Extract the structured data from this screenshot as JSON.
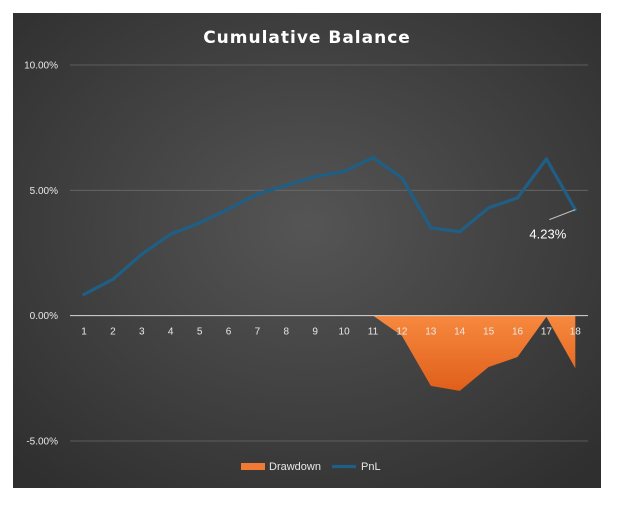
{
  "chart_data": {
    "type": "line",
    "title": "Cumulative Balance",
    "categories": [
      "1",
      "2",
      "3",
      "4",
      "5",
      "6",
      "7",
      "8",
      "9",
      "10",
      "11",
      "12",
      "13",
      "14",
      "15",
      "16",
      "17",
      "18"
    ],
    "y_ticks": [
      "10.00%",
      "5.00%",
      "0.00%",
      "-5.00%"
    ],
    "ylim": [
      -5,
      10
    ],
    "grid": true,
    "legend_position": "bottom",
    "series": [
      {
        "name": "Drawdown",
        "kind": "area",
        "color": "#f07a33",
        "values": [
          0,
          0,
          0,
          0,
          0,
          0,
          0,
          0,
          0,
          0,
          0,
          -0.8,
          -2.8,
          -3.0,
          -2.05,
          -1.65,
          -0.05,
          -2.1
        ]
      },
      {
        "name": "PnL",
        "kind": "line",
        "color": "#1f5f86",
        "values": [
          0.85,
          1.45,
          2.45,
          3.25,
          3.7,
          4.25,
          4.85,
          5.2,
          5.55,
          5.75,
          6.3,
          5.5,
          3.5,
          3.35,
          4.3,
          4.7,
          6.25,
          4.23
        ]
      }
    ],
    "annotations": [
      {
        "series": "PnL",
        "category": "18",
        "text": "4.23%"
      }
    ]
  }
}
